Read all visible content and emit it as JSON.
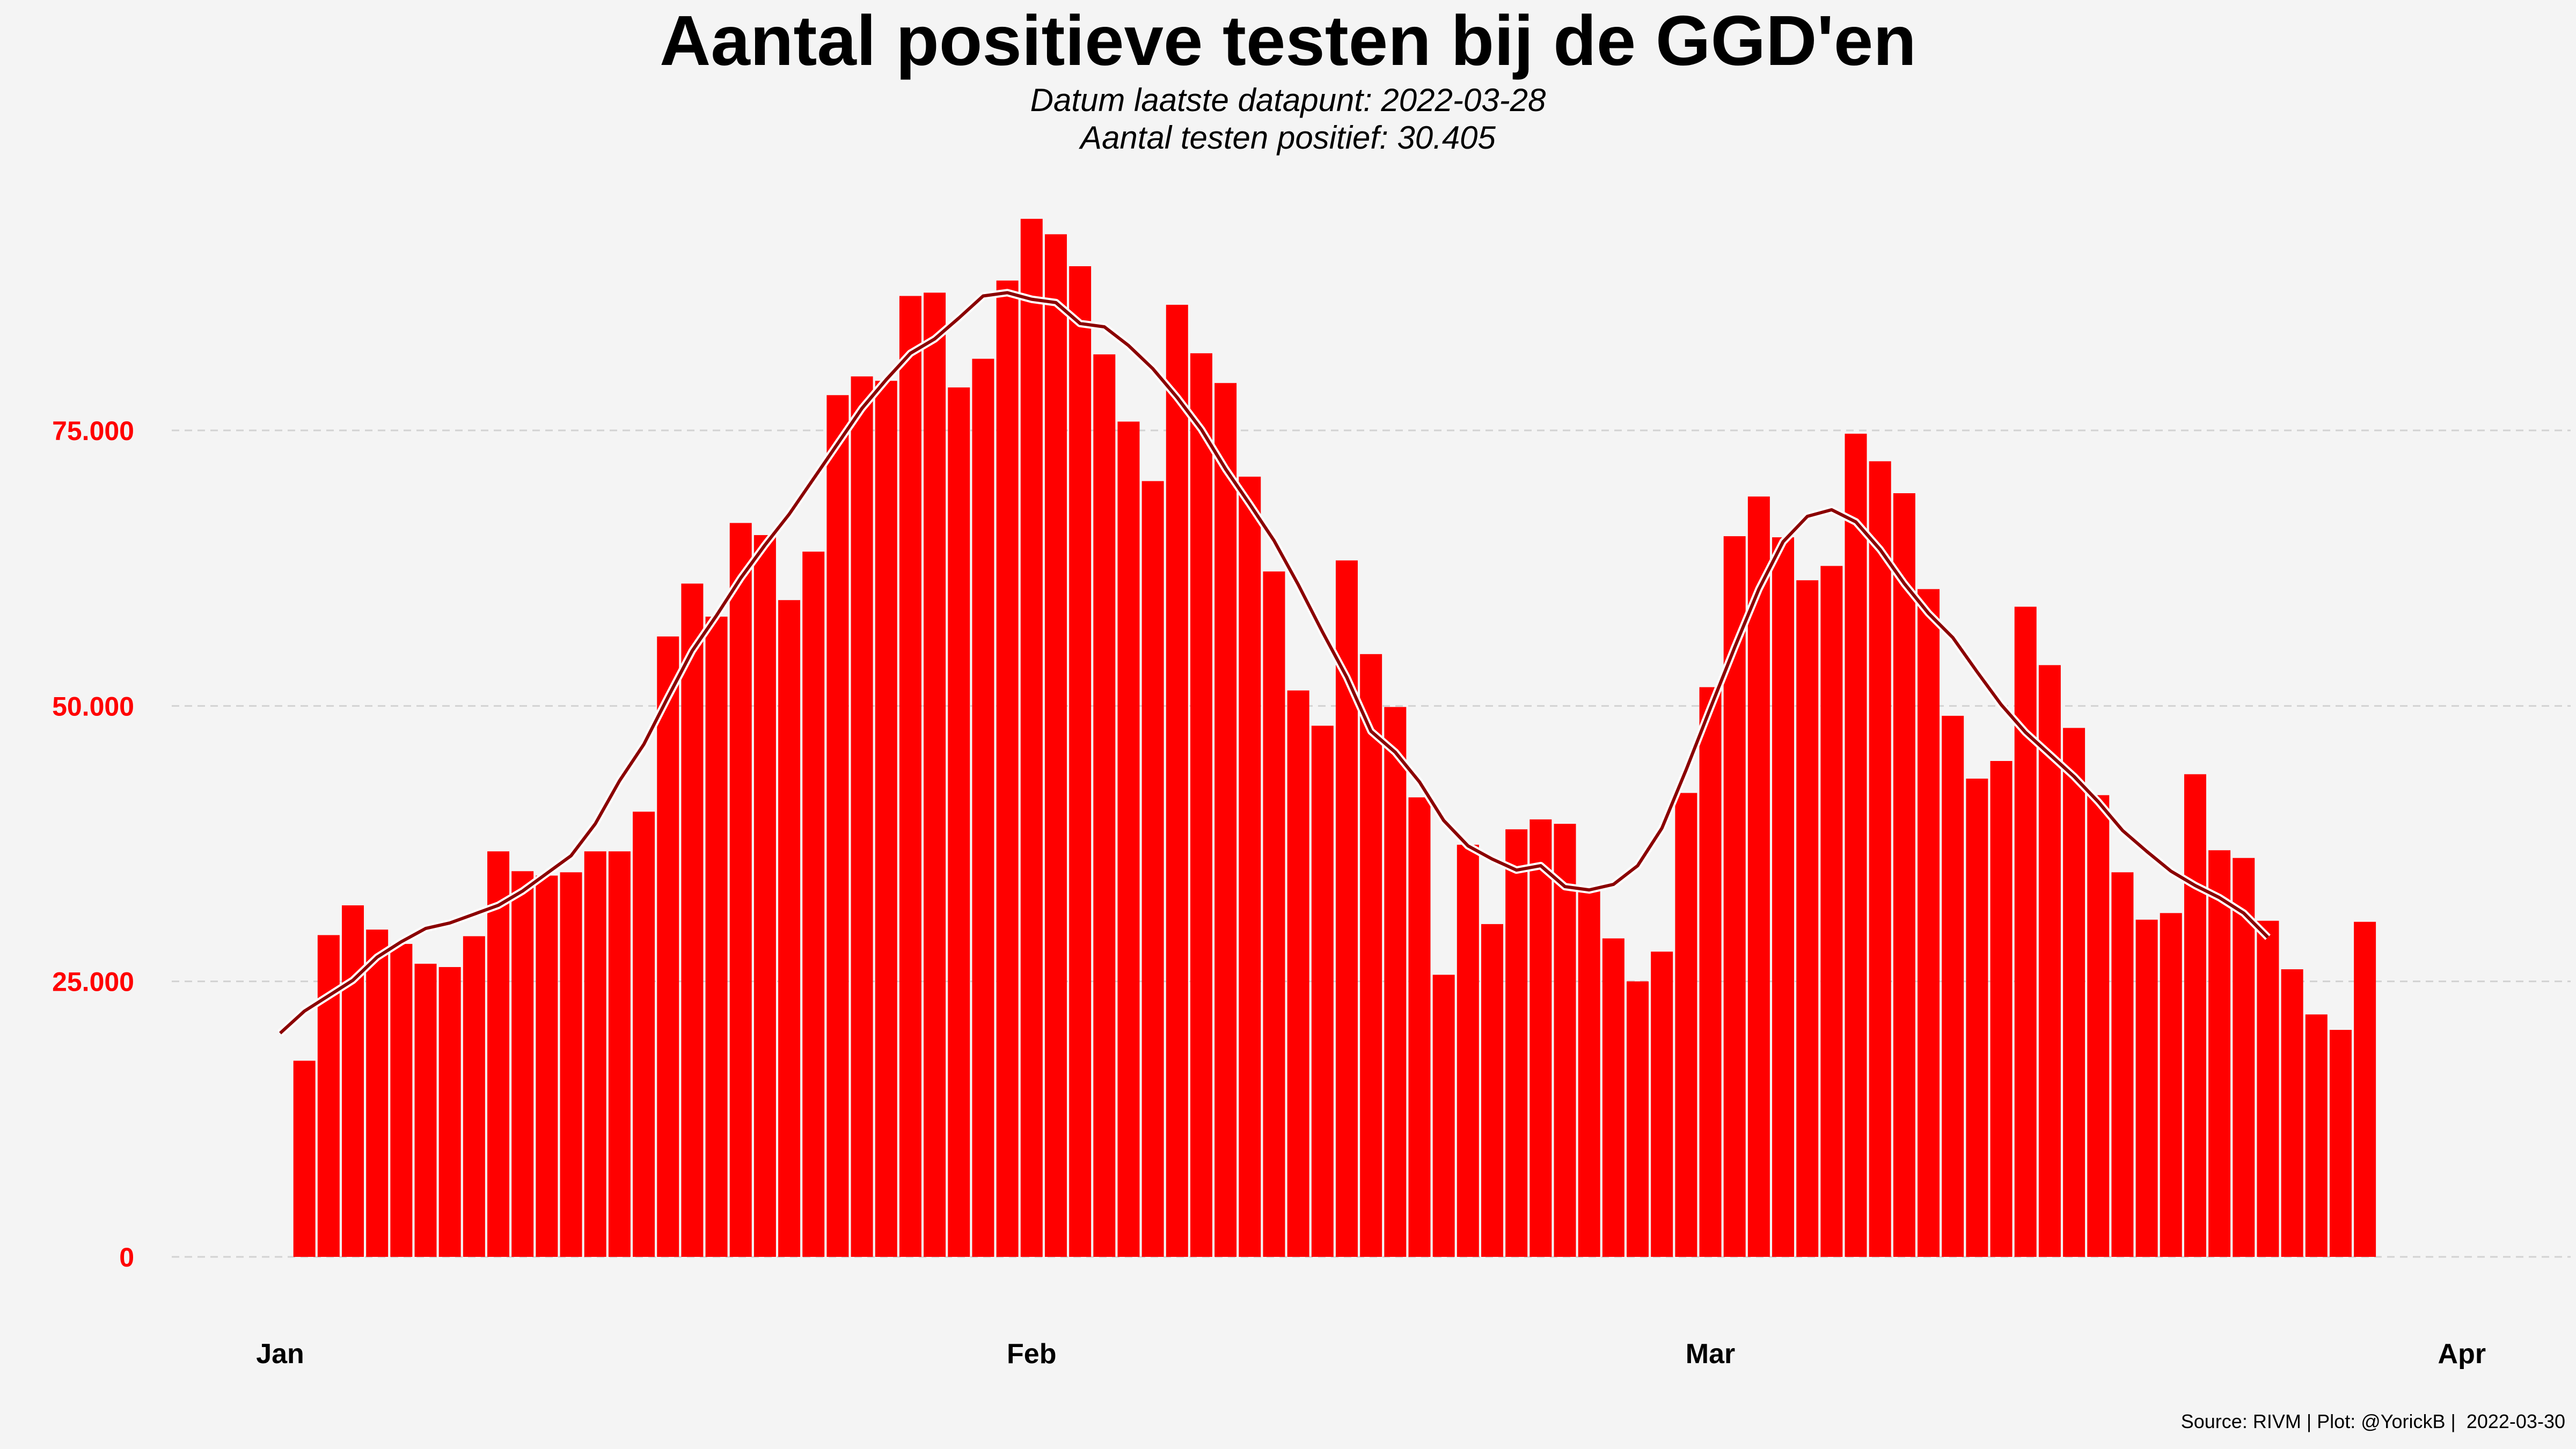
{
  "title": "Aantal positieve testen bij de GGD'en",
  "subtitle_line1": "Datum laatste datapunt: 2022-03-28",
  "subtitle_line2": "Aantal testen positief: 30.405",
  "caption": "Source: RIVM | Plot: @YorickB |  2022-03-30",
  "colors": {
    "bar": "#ff0000",
    "line": "#8b0000",
    "line_outline": "#ffffff",
    "grid": "#d2d2d2",
    "background": "#f4f4f4"
  },
  "chart_data": {
    "type": "bar",
    "x_unit": "date",
    "x_start": "2022-01-01",
    "x_ticks": [
      {
        "label": "Jan",
        "date": "2022-01-01"
      },
      {
        "label": "Feb",
        "date": "2022-02-01"
      },
      {
        "label": "Mar",
        "date": "2022-03-01"
      },
      {
        "label": "Apr",
        "date": "2022-04-01"
      }
    ],
    "y_ticks": [
      {
        "value": 0,
        "label": "0"
      },
      {
        "value": 25000,
        "label": "25.000"
      },
      {
        "value": 50000,
        "label": "50.000"
      },
      {
        "value": 75000,
        "label": "75.000"
      }
    ],
    "ylim": [
      0,
      100000
    ],
    "grid": "horizontal dashed",
    "values": [
      17800,
      29200,
      31900,
      29700,
      28400,
      26600,
      26300,
      29100,
      36800,
      35000,
      34600,
      34900,
      36800,
      36800,
      40400,
      56300,
      61100,
      58100,
      66600,
      65500,
      59600,
      64000,
      78200,
      79900,
      79500,
      87200,
      87500,
      78900,
      81500,
      88600,
      94200,
      92800,
      89900,
      81900,
      75800,
      70400,
      86400,
      82000,
      79300,
      70800,
      62200,
      51400,
      48200,
      63200,
      54700,
      49900,
      41700,
      25600,
      37400,
      30200,
      38800,
      39700,
      39300,
      33300,
      28900,
      25000,
      27700,
      42100,
      51700,
      65400,
      69000,
      65300,
      61400,
      62700,
      74700,
      72200,
      69300,
      60600,
      49100,
      43400,
      45000,
      59000,
      53700,
      48000,
      41900,
      34900,
      30600,
      31200,
      43800,
      36900,
      36200,
      30500,
      26100,
      22000,
      20600,
      30405
    ],
    "moving_average": [
      20300,
      22300,
      23700,
      25100,
      27200,
      28600,
      29800,
      30300,
      31100,
      31900,
      33200,
      34800,
      36400,
      39300,
      43200,
      46500,
      50800,
      55000,
      58200,
      61600,
      64600,
      67400,
      70600,
      73800,
      77000,
      79600,
      82000,
      83300,
      85200,
      87200,
      87500,
      86900,
      86600,
      84700,
      84400,
      82700,
      80600,
      78000,
      75100,
      71500,
      68300,
      65000,
      61000,
      56700,
      52600,
      47700,
      45800,
      43100,
      39600,
      37300,
      36100,
      35100,
      35500,
      33600,
      33300,
      33800,
      35500,
      38900,
      44200,
      49800,
      55300,
      60600,
      64900,
      67200,
      67800,
      66700,
      64200,
      61100,
      58400,
      56200,
      53100,
      50100,
      47600,
      45600,
      43600,
      41300,
      38700,
      36800,
      35000,
      33700,
      32600,
      31200,
      29000
    ]
  }
}
